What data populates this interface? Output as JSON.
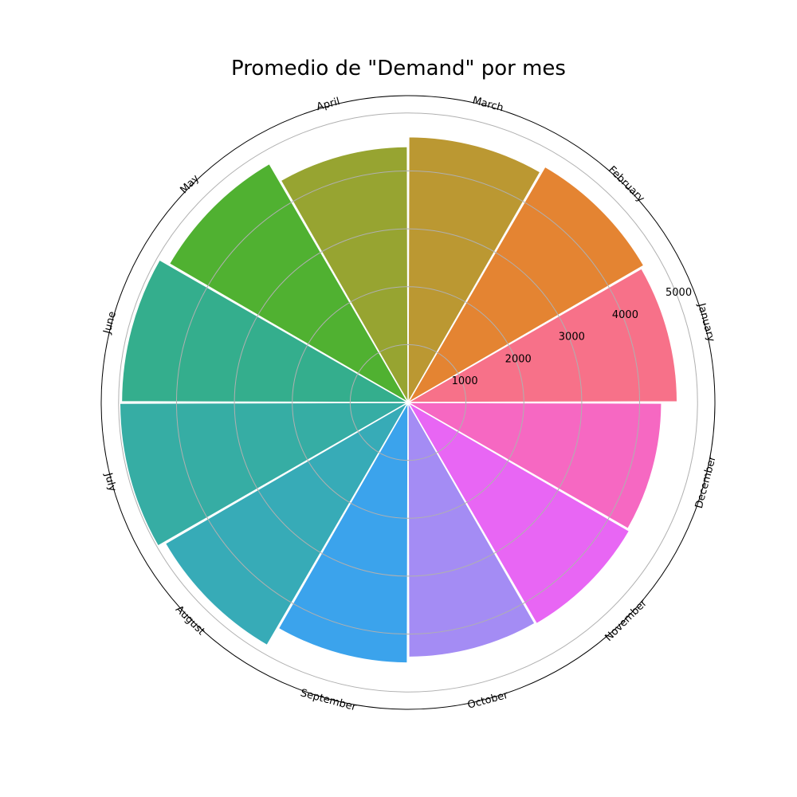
{
  "chart_data": {
    "type": "polar-bar",
    "title": "Promedio de \"Demand\" por mes",
    "categories": [
      "January",
      "February",
      "March",
      "April",
      "May",
      "June",
      "July",
      "August",
      "September",
      "October",
      "November",
      "December"
    ],
    "values": [
      4650,
      4710,
      4590,
      4420,
      4770,
      4950,
      4980,
      4850,
      4500,
      4400,
      4420,
      4380
    ],
    "colors": [
      "#f77189",
      "#e48432",
      "#bb9832",
      "#97a431",
      "#50b131",
      "#34ae8d",
      "#36ada4",
      "#37abb7",
      "#3ba3ec",
      "#a48cf4",
      "#e866f4",
      "#f668c2"
    ],
    "r_ticks": [
      1000,
      2000,
      3000,
      4000,
      5000
    ],
    "r_tick_labels": [
      "1000",
      "2000",
      "3000",
      "4000",
      "5000"
    ],
    "rlim": [
      0,
      5300
    ],
    "start_angle_label": "January",
    "direction": "counterclockwise",
    "grid": true
  }
}
